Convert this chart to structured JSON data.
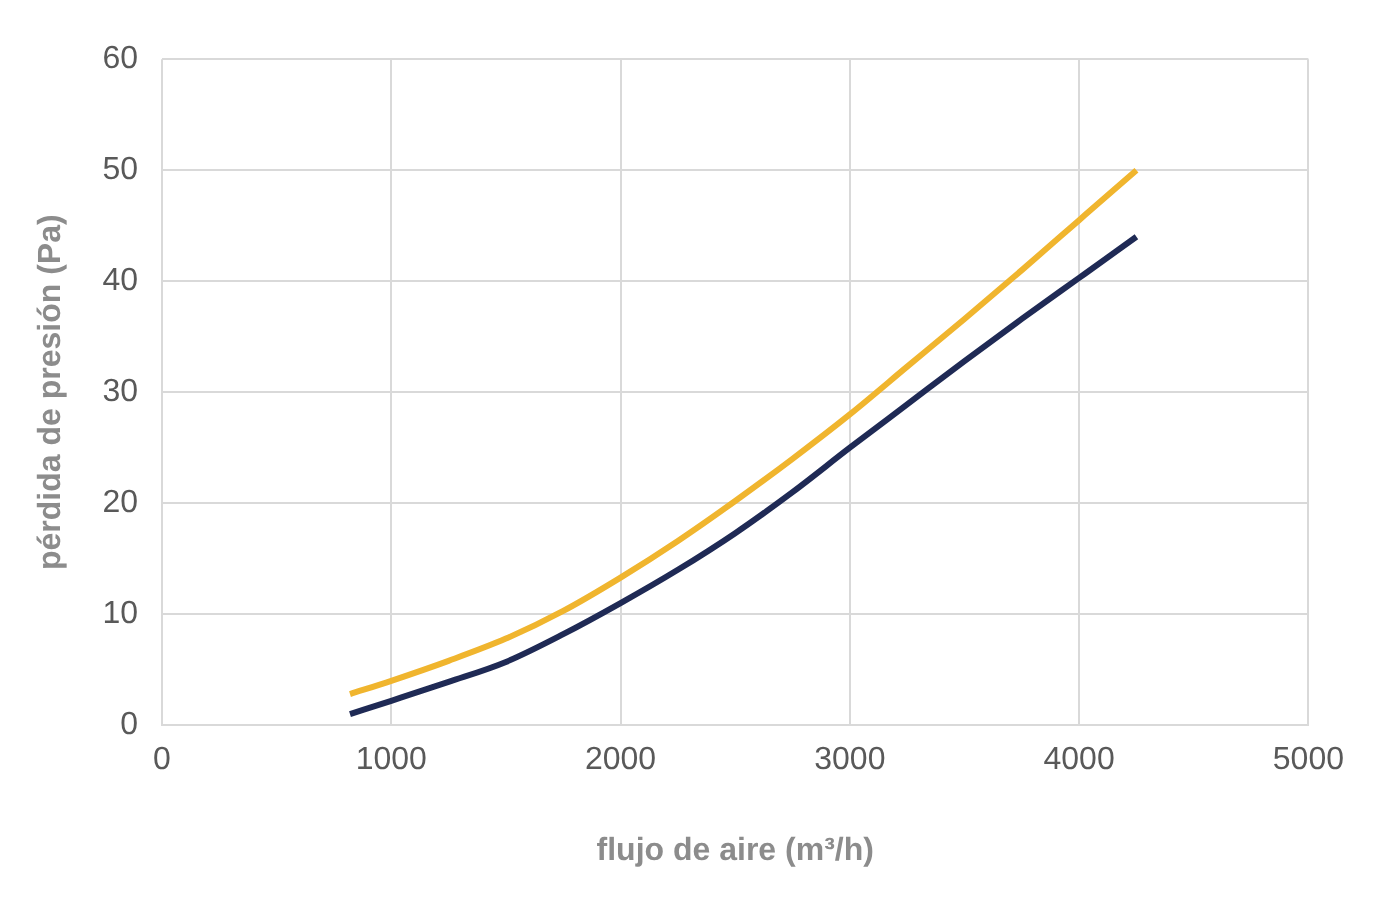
{
  "chart_data": {
    "type": "line",
    "xlabel": "flujo de aire (m³/h)",
    "ylabel": "pérdida de presión (Pa)",
    "xlim": [
      0,
      5000
    ],
    "xticks": [
      0,
      1000,
      2000,
      3000,
      4000,
      5000
    ],
    "ylim": [
      0,
      60
    ],
    "yticks": [
      0,
      10,
      20,
      30,
      40,
      50,
      60
    ],
    "grid": true,
    "legend": false,
    "marker": "none",
    "line_style": "solid",
    "series": [
      {
        "color": "#f0b52e",
        "x": [
          820,
          1000,
          1250,
          1500,
          1750,
          2000,
          2250,
          2500,
          2750,
          3000,
          3250,
          3500,
          3750,
          4000,
          4250
        ],
        "values": [
          2.8,
          4.0,
          5.8,
          7.8,
          10.3,
          13.3,
          16.6,
          20.2,
          24.0,
          28.0,
          32.3,
          36.6,
          41.0,
          45.5,
          50.0
        ]
      },
      {
        "color": "#1f2a55",
        "x": [
          820,
          1000,
          1250,
          1500,
          1750,
          2000,
          2250,
          2500,
          2750,
          3000,
          3250,
          3500,
          3750,
          4000,
          4250
        ],
        "values": [
          1.0,
          2.2,
          3.9,
          5.7,
          8.2,
          11.0,
          14.0,
          17.3,
          21.0,
          25.0,
          28.9,
          32.8,
          36.6,
          40.3,
          44.0
        ]
      }
    ]
  }
}
